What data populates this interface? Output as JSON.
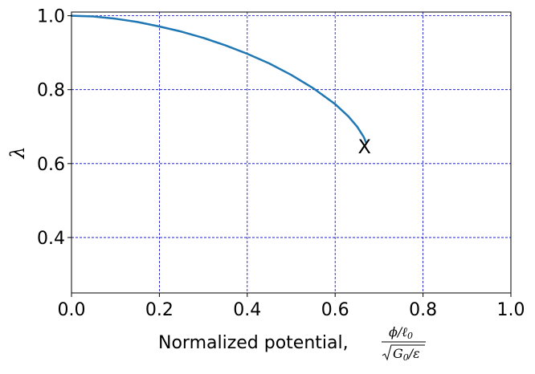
{
  "chart_data": {
    "type": "line",
    "title": "",
    "xlabel": "Normalized potential,",
    "xlabel_math": {
      "numerator": "ϕ/ℓ",
      "numerator_sub": "0",
      "denominator": "G",
      "denominator_sub": "0",
      "denominator_tail": "/ε"
    },
    "ylabel": "λ",
    "xlim": [
      0.0,
      1.0
    ],
    "ylim": [
      0.25,
      1.01
    ],
    "xticks": [
      0.0,
      0.2,
      0.4,
      0.6,
      0.8,
      1.0
    ],
    "xtick_labels": [
      "0.0",
      "0.2",
      "0.4",
      "0.6",
      "0.8",
      "1.0"
    ],
    "yticks": [
      0.4,
      0.6,
      0.8,
      1.0
    ],
    "ytick_labels": [
      "0.4",
      "0.6",
      "0.8",
      "1.0"
    ],
    "grid": true,
    "grid_color": "#0000cc",
    "series": [
      {
        "color": "#1f77b4",
        "x": [
          0.0,
          0.05,
          0.1,
          0.15,
          0.2,
          0.25,
          0.3,
          0.35,
          0.4,
          0.45,
          0.5,
          0.55,
          0.6,
          0.63,
          0.65,
          0.665,
          0.67
        ],
        "y": [
          1.0,
          0.998,
          0.992,
          0.983,
          0.971,
          0.957,
          0.94,
          0.92,
          0.897,
          0.871,
          0.84,
          0.804,
          0.761,
          0.728,
          0.7,
          0.672,
          0.658
        ]
      }
    ],
    "annotations": [
      {
        "text": "X",
        "x": 0.67,
        "y": 0.645
      }
    ]
  }
}
